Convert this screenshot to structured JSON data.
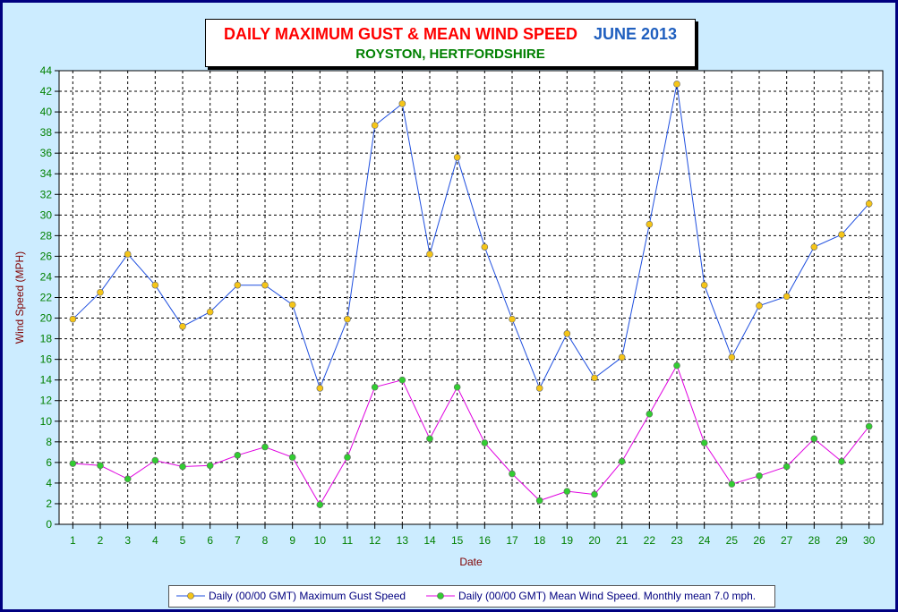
{
  "header": {
    "title": "DAILY MAXIMUM GUST & MEAN WIND SPEED",
    "month": "JUNE 2013",
    "subtitle": "ROYSTON, HERTFORDSHIRE"
  },
  "legend": {
    "gust_label": "Daily (00/00 GMT) Maximum Gust Speed",
    "mean_label": "Daily (00/00 GMT) Mean Wind Speed. Monthly mean 7.0 mph."
  },
  "colors": {
    "background": "#ccecff",
    "gust_line": "#1f4fdf",
    "gust_marker": "#f5c518",
    "mean_line": "#e000e0",
    "mean_marker": "#32cd32",
    "axis_text": "#008000",
    "axis_label": "#800000"
  },
  "chart_data": {
    "type": "line",
    "title": "DAILY MAXIMUM GUST & MEAN WIND SPEED JUNE 2013",
    "subtitle": "ROYSTON, HERTFORDSHIRE",
    "xlabel": "Date",
    "ylabel": "Wind Speed (MPH)",
    "x": [
      1,
      2,
      3,
      4,
      5,
      6,
      7,
      8,
      9,
      10,
      11,
      12,
      13,
      14,
      15,
      16,
      17,
      18,
      19,
      20,
      21,
      22,
      23,
      24,
      25,
      26,
      27,
      28,
      29,
      30
    ],
    "ylim": [
      0,
      44
    ],
    "yticks": [
      0,
      2,
      4,
      6,
      8,
      10,
      12,
      14,
      16,
      18,
      20,
      22,
      24,
      26,
      28,
      30,
      32,
      34,
      36,
      38,
      40,
      42,
      44
    ],
    "grid": true,
    "legend_position": "bottom",
    "series": [
      {
        "name": "Daily (00/00 GMT) Maximum Gust Speed",
        "values": [
          19.9,
          22.5,
          26.2,
          23.2,
          19.2,
          20.6,
          23.2,
          23.2,
          21.3,
          13.2,
          19.9,
          38.7,
          40.8,
          26.2,
          35.6,
          26.9,
          19.9,
          13.2,
          18.5,
          14.2,
          16.2,
          29.1,
          42.7,
          23.2,
          16.2,
          21.2,
          22.1,
          26.9,
          28.1,
          31.1
        ]
      },
      {
        "name": "Daily (00/00 GMT) Mean Wind Speed. Monthly mean 7.0 mph.",
        "values": [
          5.9,
          5.7,
          4.4,
          6.2,
          5.6,
          5.7,
          6.7,
          7.5,
          6.5,
          1.9,
          6.5,
          13.3,
          14.0,
          8.3,
          13.3,
          7.9,
          4.9,
          2.3,
          3.2,
          2.9,
          6.1,
          10.7,
          15.4,
          7.9,
          3.9,
          4.7,
          5.6,
          8.3,
          6.1,
          9.5
        ]
      }
    ]
  }
}
